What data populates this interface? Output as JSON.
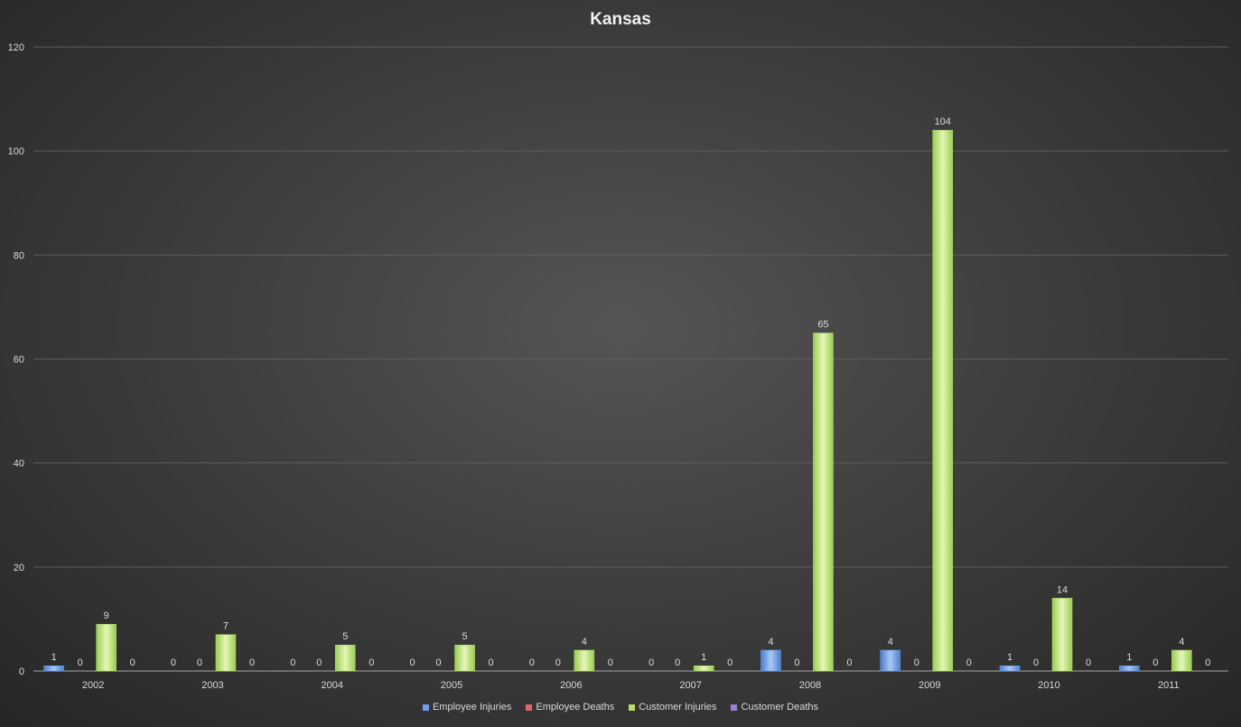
{
  "chart_data": {
    "type": "bar",
    "title": "Kansas",
    "xlabel": "",
    "ylabel": "",
    "categories": [
      "2002",
      "2003",
      "2004",
      "2005",
      "2006",
      "2007",
      "2008",
      "2009",
      "2010",
      "2011"
    ],
    "ylim": [
      0,
      120
    ],
    "yticks": [
      0,
      20,
      40,
      60,
      80,
      100,
      120
    ],
    "grid": true,
    "legend_position": "bottom",
    "series": [
      {
        "name": "Employee Injuries",
        "color": "#6f9fe6",
        "values": [
          1,
          0,
          0,
          0,
          0,
          0,
          4,
          4,
          1,
          1
        ]
      },
      {
        "name": "Employee Deaths",
        "color": "#e06666",
        "values": [
          0,
          0,
          0,
          0,
          0,
          0,
          0,
          0,
          0,
          0
        ]
      },
      {
        "name": "Customer Injuries",
        "color": "#b3e06a",
        "values": [
          9,
          7,
          5,
          5,
          4,
          1,
          65,
          104,
          14,
          4
        ]
      },
      {
        "name": "Customer Deaths",
        "color": "#9b7fd4",
        "values": [
          0,
          0,
          0,
          0,
          0,
          0,
          0,
          0,
          0,
          0
        ]
      }
    ]
  }
}
